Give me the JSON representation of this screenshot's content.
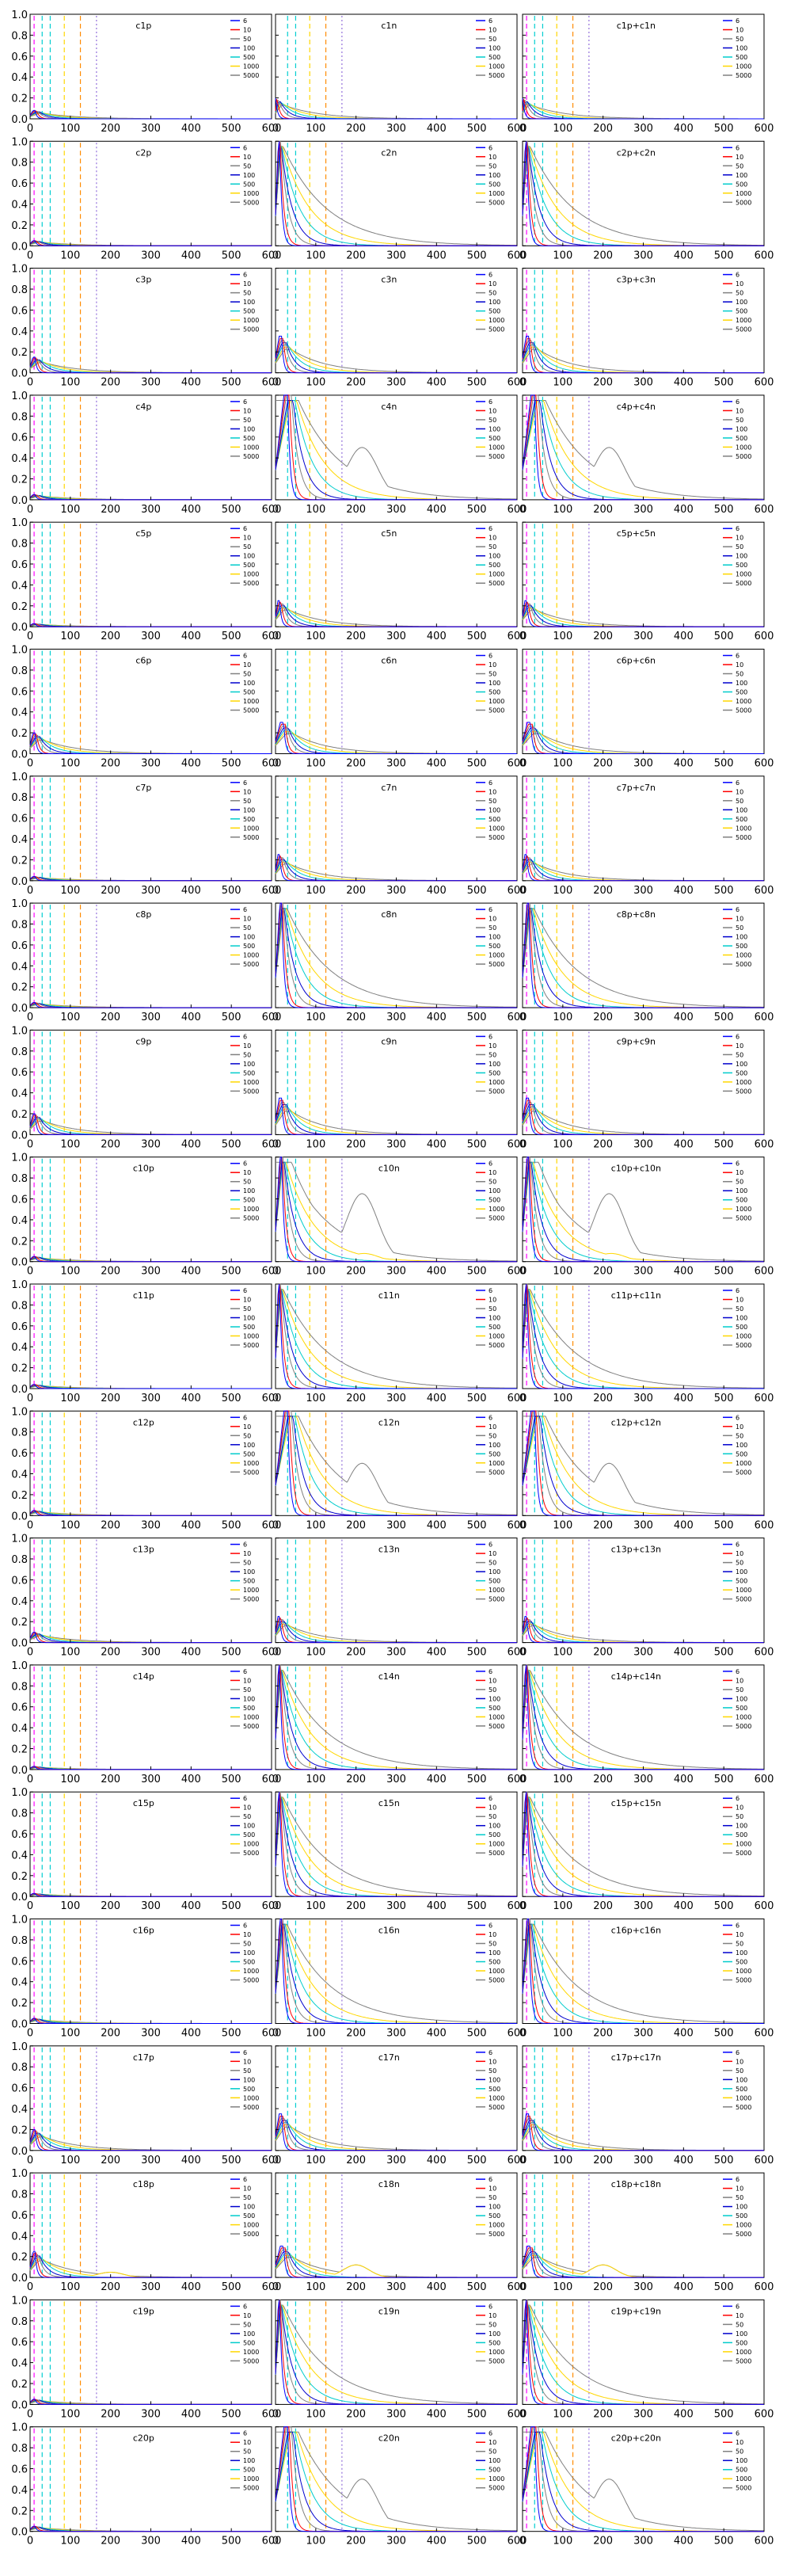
{
  "x_ticks": [
    "0",
    "100",
    "200",
    "300",
    "400",
    "500",
    "600"
  ],
  "y_ticks": [
    "0.0",
    "0.2",
    "0.4",
    "0.6",
    "0.8",
    "1.0"
  ],
  "legend": [
    "6",
    "10",
    "50",
    "100",
    "500",
    "1000",
    "5000"
  ],
  "colors": {
    "s6": "#0000ff",
    "s10": "#ff0000",
    "s50": "#808080",
    "s100": "#0000cd",
    "s500": "#00cccc",
    "s1000": "#ffd700",
    "s5000": "#808080",
    "vline_magenta": "#ff00ff",
    "vline_cyan": "#00ced1",
    "vline_yellow": "#ffd700",
    "vline_orange": "#ff8c00",
    "vline_purple": "#9370db"
  },
  "chart_data": {
    "type": "line",
    "layout": "20 rows x 3 columns of small multiples",
    "xlim": [
      0,
      600
    ],
    "ylim": [
      0,
      1.0
    ],
    "series_names": [
      "6",
      "10",
      "50",
      "100",
      "500",
      "1000",
      "5000"
    ],
    "reference_vlines_x": [
      10,
      30,
      50,
      85,
      125,
      165
    ],
    "rows": [
      {
        "id": 1,
        "titles": [
          "c1p",
          "c1n",
          "c1p+c1n"
        ],
        "p": {
          "amp": 0.08,
          "bump": 0
        },
        "n": {
          "amp": 0.2,
          "peak": 0,
          "bump": 0
        }
      },
      {
        "id": 2,
        "titles": [
          "c2p",
          "c2n",
          "c2p+c2n"
        ],
        "p": {
          "amp": 0.05,
          "bump": 0
        },
        "n": {
          "amp": 1.0,
          "peak": 10,
          "bump": 0.1
        }
      },
      {
        "id": 3,
        "titles": [
          "c3p",
          "c3n",
          "c3p+c3n"
        ],
        "p": {
          "amp": 0.15,
          "bump": 0
        },
        "n": {
          "amp": 0.35,
          "peak": 15,
          "bump": 0
        }
      },
      {
        "id": 4,
        "titles": [
          "c4p",
          "c4n",
          "c4p+c4n"
        ],
        "p": {
          "amp": 0.05,
          "bump": 0
        },
        "n": {
          "amp": 1.0,
          "peak": 30,
          "bump": 0.5
        }
      },
      {
        "id": 5,
        "titles": [
          "c5p",
          "c5n",
          "c5p+c5n"
        ],
        "p": {
          "amp": 0.03,
          "bump": 0
        },
        "n": {
          "amp": 0.25,
          "peak": 10,
          "bump": 0
        }
      },
      {
        "id": 6,
        "titles": [
          "c6p",
          "c6n",
          "c6p+c6n"
        ],
        "p": {
          "amp": 0.2,
          "bump": 0
        },
        "n": {
          "amp": 0.3,
          "peak": 20,
          "bump": 0
        }
      },
      {
        "id": 7,
        "titles": [
          "c7p",
          "c7n",
          "c7p+c7n"
        ],
        "p": {
          "amp": 0.04,
          "bump": 0
        },
        "n": {
          "amp": 0.25,
          "peak": 10,
          "bump": 0
        }
      },
      {
        "id": 8,
        "titles": [
          "c8p",
          "c8n",
          "c8p+c8n"
        ],
        "p": {
          "amp": 0.05,
          "bump": 0
        },
        "n": {
          "amp": 1.0,
          "peak": 15,
          "bump": 0.15
        }
      },
      {
        "id": 9,
        "titles": [
          "c9p",
          "c9n",
          "c9p+c9n"
        ],
        "p": {
          "amp": 0.2,
          "bump": 0
        },
        "n": {
          "amp": 0.35,
          "peak": 15,
          "bump": 0
        }
      },
      {
        "id": 10,
        "titles": [
          "c10p",
          "c10n",
          "c10p+c10n"
        ],
        "p": {
          "amp": 0.05,
          "bump": 0
        },
        "n": {
          "amp": 1.0,
          "peak": 15,
          "bump": 0.65
        }
      },
      {
        "id": 11,
        "titles": [
          "c11p",
          "c11n",
          "c11p+c11n"
        ],
        "p": {
          "amp": 0.04,
          "bump": 0
        },
        "n": {
          "amp": 1.0,
          "peak": 10,
          "bump": 0.06
        }
      },
      {
        "id": 12,
        "titles": [
          "c12p",
          "c12n",
          "c12p+c12n"
        ],
        "p": {
          "amp": 0.05,
          "bump": 0
        },
        "n": {
          "amp": 1.0,
          "peak": 30,
          "bump": 0.5
        }
      },
      {
        "id": 13,
        "titles": [
          "c13p",
          "c13n",
          "c13p+c13n"
        ],
        "p": {
          "amp": 0.1,
          "bump": 0
        },
        "n": {
          "amp": 0.25,
          "peak": 10,
          "bump": 0
        }
      },
      {
        "id": 14,
        "titles": [
          "c14p",
          "c14n",
          "c14p+c14n"
        ],
        "p": {
          "amp": 0.03,
          "bump": 0
        },
        "n": {
          "amp": 1.0,
          "peak": 10,
          "bump": 0.05
        }
      },
      {
        "id": 15,
        "titles": [
          "c15p",
          "c15n",
          "c15p+c15n"
        ],
        "p": {
          "amp": 0.03,
          "bump": 0
        },
        "n": {
          "amp": 1.0,
          "peak": 10,
          "bump": 0
        }
      },
      {
        "id": 16,
        "titles": [
          "c16p",
          "c16n",
          "c16p+c16n"
        ],
        "p": {
          "amp": 0.05,
          "bump": 0
        },
        "n": {
          "amp": 1.0,
          "peak": 15,
          "bump": 0.15
        }
      },
      {
        "id": 17,
        "titles": [
          "c17p",
          "c17n",
          "c17p+c17n"
        ],
        "p": {
          "amp": 0.2,
          "bump": 0
        },
        "n": {
          "amp": 0.35,
          "peak": 15,
          "bump": 0
        }
      },
      {
        "id": 18,
        "titles": [
          "c18p",
          "c18n",
          "c18p+c18n"
        ],
        "p": {
          "amp": 0.25,
          "bump": 0.05
        },
        "n": {
          "amp": 0.3,
          "peak": 20,
          "bump": 0.12
        }
      },
      {
        "id": 19,
        "titles": [
          "c19p",
          "c19n",
          "c19p+c19n"
        ],
        "p": {
          "amp": 0.05,
          "bump": 0
        },
        "n": {
          "amp": 1.0,
          "peak": 10,
          "bump": 0.06
        }
      },
      {
        "id": 20,
        "titles": [
          "c20p",
          "c20n",
          "c20p+c20n"
        ],
        "p": {
          "amp": 0.05,
          "bump": 0
        },
        "n": {
          "amp": 1.0,
          "peak": 30,
          "bump": 0.5
        }
      }
    ]
  }
}
